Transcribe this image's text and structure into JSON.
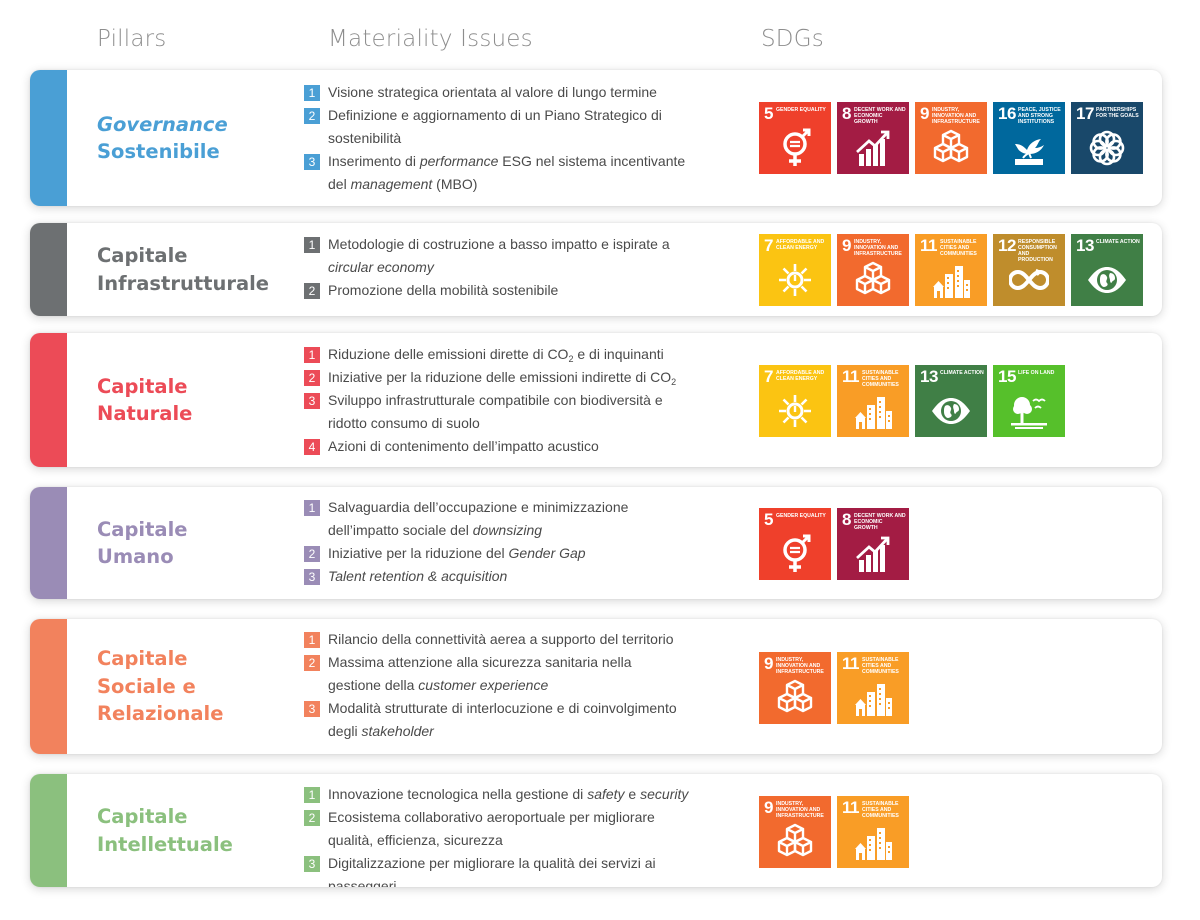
{
  "headers": {
    "pillars": "Pillars",
    "issues": "Materiality Issues",
    "sdgs": "SDGs"
  },
  "colors": {
    "governance": "#4a9fd5",
    "infrastrutturale": "#6d7072",
    "naturale": "#ec4b57",
    "umano": "#9a8cb6",
    "sociale": "#f2825d",
    "intellettuale": "#8bc07e"
  },
  "sdg_goals": {
    "5": {
      "number": "5",
      "label": "Gender equality",
      "color": "#ef402b",
      "icon": "gender-icon"
    },
    "7": {
      "number": "7",
      "label": "Affordable and clean energy",
      "color": "#fbc412",
      "icon": "sun-icon"
    },
    "8": {
      "number": "8",
      "label": "Decent work and economic growth",
      "color": "#a31c44",
      "icon": "growth-chart-icon"
    },
    "9": {
      "number": "9",
      "label": "Industry, innovation and infrastructure",
      "color": "#f26a2e",
      "icon": "cubes-icon"
    },
    "11": {
      "number": "11",
      "label": "Sustainable cities and communities",
      "color": "#f99d26",
      "icon": "city-icon"
    },
    "12": {
      "number": "12",
      "label": "Responsible consumption and production",
      "color": "#bf8d2c",
      "icon": "infinity-icon"
    },
    "13": {
      "number": "13",
      "label": "Climate action",
      "color": "#407f46",
      "icon": "eye-globe-icon"
    },
    "15": {
      "number": "15",
      "label": "Life on land",
      "color": "#56c02b",
      "icon": "tree-icon"
    },
    "16": {
      "number": "16",
      "label": "Peace, justice and strong institutions",
      "color": "#00689d",
      "icon": "dove-icon"
    },
    "17": {
      "number": "17",
      "label": "Partnerships for the goals",
      "color": "#19486a",
      "icon": "flower-icon"
    }
  },
  "rows": [
    {
      "key": "governance",
      "title_lines": [
        {
          "text": "Governance",
          "italic": true
        },
        {
          "text": "Sostenibile",
          "italic": false
        }
      ],
      "issues": [
        {
          "num": "1",
          "html": "Visione strategica orientata al valore di lungo termine"
        },
        {
          "num": "2",
          "html": "Definizione e aggiornamento di un Piano Strategico di<br>sostenibilità"
        },
        {
          "num": "3",
          "html": "Inserimento di <i>performance</i> ESG nel sistema incentivante<br>del <i>management</i> (MBO)"
        }
      ],
      "sdgs": [
        "5",
        "8",
        "9",
        "16",
        "17"
      ]
    },
    {
      "key": "infrastrutturale",
      "title_lines": [
        {
          "text": "Capitale",
          "italic": false
        },
        {
          "text": "Infrastrutturale",
          "italic": false
        }
      ],
      "issues": [
        {
          "num": "1",
          "html": "Metodologie di costruzione a basso impatto e ispirate a<br><i>circular economy</i>"
        },
        {
          "num": "2",
          "html": "Promozione della mobilità sostenibile"
        }
      ],
      "sdgs": [
        "7",
        "9",
        "11",
        "12",
        "13"
      ]
    },
    {
      "key": "naturale",
      "title_lines": [
        {
          "text": "Capitale",
          "italic": false
        },
        {
          "text": "Naturale",
          "italic": false
        }
      ],
      "issues": [
        {
          "num": "1",
          "html": "Riduzione delle emissioni dirette di CO<sub>2</sub> e di inquinanti"
        },
        {
          "num": "2",
          "html": "Iniziative per la riduzione delle emissioni indirette di CO<sub>2</sub>"
        },
        {
          "num": "3",
          "html": "Sviluppo infrastrutturale compatibile con biodiversità e<br>ridotto consumo di suolo"
        },
        {
          "num": "4",
          "html": "Azioni di contenimento dell’impatto acustico"
        }
      ],
      "sdgs": [
        "7",
        "11",
        "13",
        "15"
      ]
    },
    {
      "key": "umano",
      "title_lines": [
        {
          "text": "Capitale",
          "italic": false
        },
        {
          "text": "Umano",
          "italic": false
        }
      ],
      "issues": [
        {
          "num": "1",
          "html": "Salvaguardia dell’occupazione e minimizzazione<br>dell’impatto sociale del <i>downsizing</i>"
        },
        {
          "num": "2",
          "html": "Iniziative per la riduzione del <i>Gender Gap</i>"
        },
        {
          "num": "3",
          "html": "<i>Talent retention &amp; acquisition</i>"
        }
      ],
      "sdgs": [
        "5",
        "8"
      ]
    },
    {
      "key": "sociale",
      "title_lines": [
        {
          "text": "Capitale",
          "italic": false
        },
        {
          "text": "Sociale e",
          "italic": false
        },
        {
          "text": "Relazionale",
          "italic": false
        }
      ],
      "issues": [
        {
          "num": "1",
          "html": "Rilancio della connettività aerea a supporto del territorio"
        },
        {
          "num": "2",
          "html": "Massima attenzione alla sicurezza sanitaria nella<br>gestione della <i>customer experience</i>"
        },
        {
          "num": "3",
          "html": "Modalità strutturate di interlocuzione e di coinvolgimento<br>degli <i>stakeholder</i>"
        }
      ],
      "sdgs": [
        "9",
        "11"
      ]
    },
    {
      "key": "intellettuale",
      "title_lines": [
        {
          "text": "Capitale",
          "italic": false
        },
        {
          "text": "Intellettuale",
          "italic": false
        }
      ],
      "issues": [
        {
          "num": "1",
          "html": "Innovazione tecnologica nella gestione di <i>safety</i> e <i>security</i>"
        },
        {
          "num": "2",
          "html": "Ecosistema collaborativo aeroportuale per migliorare<br>qualità, efficienza, sicurezza"
        },
        {
          "num": "3",
          "html": "Digitalizzazione per migliorare la qualità dei servizi ai passeggeri"
        }
      ],
      "sdgs": [
        "9",
        "11"
      ]
    }
  ]
}
